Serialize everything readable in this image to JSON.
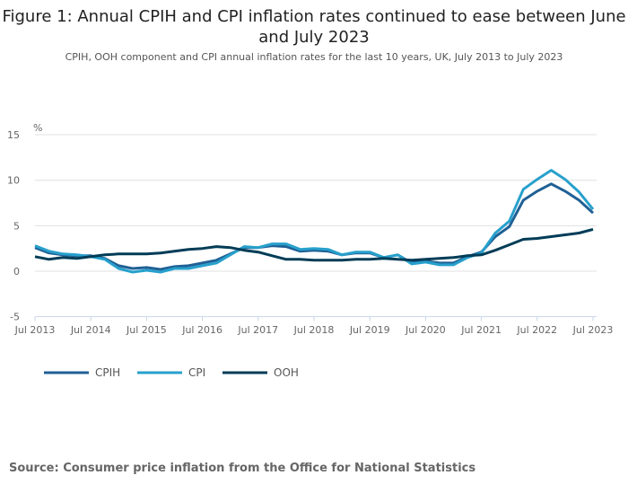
{
  "chart_data": {
    "type": "line",
    "title": "Figure 1: Annual CPIH and CPI inflation rates continued to ease between June and July 2023",
    "subtitle": "CPIH, OOH component and CPI annual inflation rates for the last 10 years, UK, July 2013 to July 2023",
    "ylabel": "%",
    "ylim": [
      -5,
      15
    ],
    "yticks": [
      "15",
      "10",
      "5",
      "0",
      "-5"
    ],
    "ytick_values": [
      15,
      10,
      5,
      0,
      -5
    ],
    "xticks": [
      "Jul 2013",
      "Jul 2014",
      "Jul 2015",
      "Jul 2016",
      "Jul 2017",
      "Jul 2018",
      "Jul 2019",
      "Jul 2020",
      "Jul 2021",
      "Jul 2022",
      "Jul 2023"
    ],
    "x": [
      "Jul 2013",
      "Oct 2013",
      "Jan 2014",
      "Apr 2014",
      "Jul 2014",
      "Oct 2014",
      "Jan 2015",
      "Apr 2015",
      "Jul 2015",
      "Oct 2015",
      "Jan 2016",
      "Apr 2016",
      "Jul 2016",
      "Oct 2016",
      "Jan 2017",
      "Apr 2017",
      "Jul 2017",
      "Oct 2017",
      "Jan 2018",
      "Apr 2018",
      "Jul 2018",
      "Oct 2018",
      "Jan 2019",
      "Apr 2019",
      "Jul 2019",
      "Oct 2019",
      "Jan 2020",
      "Apr 2020",
      "Jul 2020",
      "Oct 2020",
      "Jan 2021",
      "Apr 2021",
      "Jul 2021",
      "Oct 2021",
      "Jan 2022",
      "Apr 2022",
      "Jul 2022",
      "Oct 2022",
      "Jan 2023",
      "Apr 2023",
      "Jul 2023"
    ],
    "series": [
      {
        "name": "CPIH",
        "color": "#206095",
        "values": [
          2.6,
          2.0,
          1.8,
          1.7,
          1.7,
          1.4,
          0.6,
          0.3,
          0.4,
          0.2,
          0.5,
          0.6,
          0.9,
          1.2,
          1.9,
          2.6,
          2.6,
          2.8,
          2.7,
          2.2,
          2.3,
          2.2,
          1.8,
          2.0,
          2.0,
          1.5,
          1.8,
          0.9,
          1.1,
          0.9,
          0.9,
          1.6,
          2.1,
          3.8,
          4.9,
          7.8,
          8.8,
          9.6,
          8.8,
          7.8,
          6.4
        ]
      },
      {
        "name": "CPI",
        "color": "#27a0cc",
        "values": [
          2.8,
          2.2,
          1.9,
          1.8,
          1.6,
          1.3,
          0.3,
          -0.1,
          0.1,
          -0.1,
          0.3,
          0.3,
          0.6,
          0.9,
          1.8,
          2.7,
          2.6,
          3.0,
          3.0,
          2.4,
          2.5,
          2.4,
          1.8,
          2.1,
          2.1,
          1.5,
          1.8,
          0.8,
          1.0,
          0.7,
          0.7,
          1.5,
          2.0,
          4.2,
          5.5,
          9.0,
          10.1,
          11.1,
          10.1,
          8.7,
          6.8
        ]
      },
      {
        "name": "OOH",
        "color": "#003c57",
        "values": [
          1.6,
          1.3,
          1.5,
          1.4,
          1.6,
          1.8,
          1.9,
          1.9,
          1.9,
          2.0,
          2.2,
          2.4,
          2.5,
          2.7,
          2.6,
          2.3,
          2.1,
          1.7,
          1.3,
          1.3,
          1.2,
          1.2,
          1.2,
          1.3,
          1.3,
          1.4,
          1.3,
          1.2,
          1.3,
          1.4,
          1.5,
          1.7,
          1.8,
          2.3,
          2.9,
          3.5,
          3.6,
          3.8,
          4.0,
          4.2,
          4.6
        ]
      }
    ],
    "legend_position": "bottom-left",
    "grid": true
  },
  "source": "Source: Consumer price inflation from the Office for National Statistics"
}
